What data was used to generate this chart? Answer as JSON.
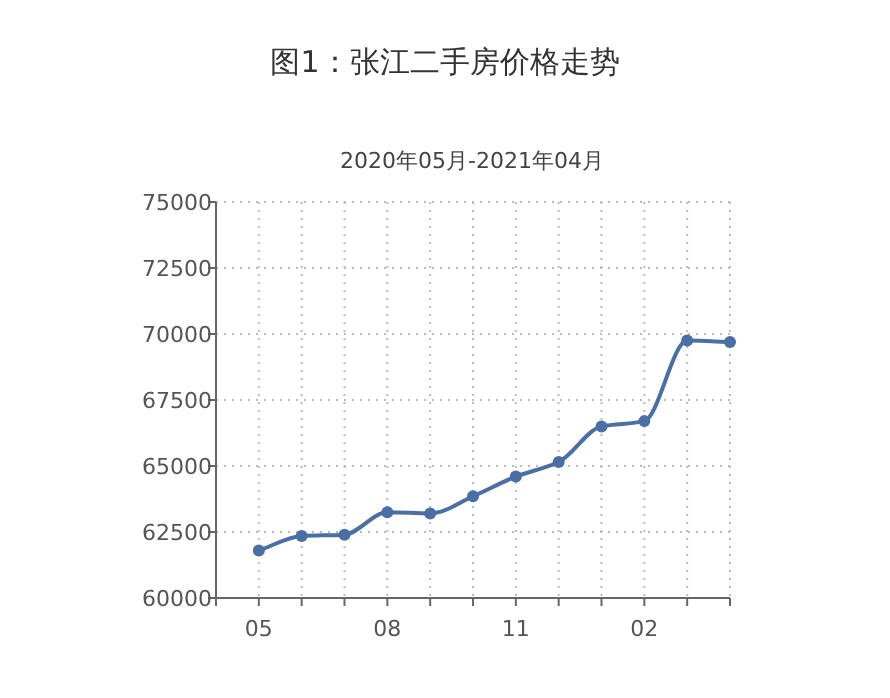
{
  "chart_data": {
    "type": "line",
    "title": "图1：张江二手房价格走势",
    "subtitle": "2020年05月-2021年04月",
    "categories": [
      "05",
      null,
      null,
      "08",
      null,
      null,
      "11",
      null,
      null,
      "02",
      null,
      null
    ],
    "values": [
      61800,
      62350,
      62400,
      63250,
      63200,
      63850,
      64600,
      65150,
      66500,
      66700,
      69750,
      69700
    ],
    "color": "#4a6fa5",
    "ylim": [
      60000,
      75000
    ],
    "yticks": [
      60000,
      62500,
      65000,
      67500,
      70000,
      72500,
      75000
    ],
    "grid": true,
    "marker": "circle",
    "line_style": "solid"
  }
}
